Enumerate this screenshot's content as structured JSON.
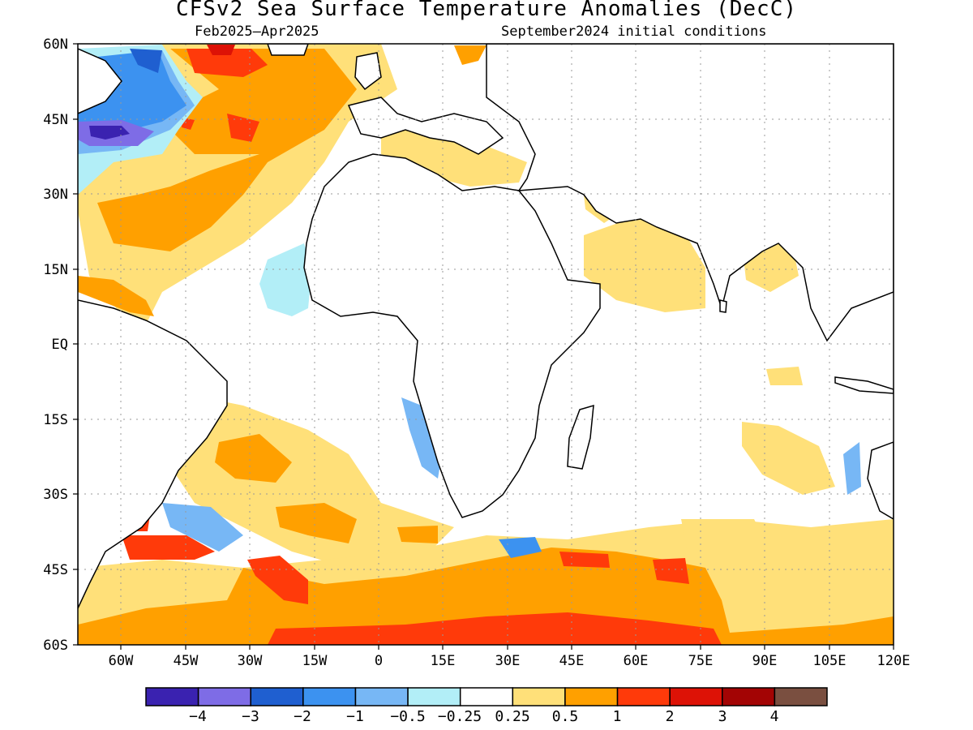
{
  "title": "CFSv2 Sea Surface Temperature Anomalies (DecC)",
  "subtitle_left": "Feb2025–Apr2025",
  "subtitle_right": "September2024 initial conditions",
  "lat_labels": [
    "60N",
    "45N",
    "30N",
    "15N",
    "EQ",
    "15S",
    "30S",
    "45S",
    "60S"
  ],
  "lon_labels": [
    "60W",
    "45W",
    "30W",
    "15W",
    "0",
    "15E",
    "30E",
    "45E",
    "60E",
    "75E",
    "90E",
    "105E",
    "120E"
  ],
  "colorbar": {
    "colors": [
      "#3a22b0",
      "#7e6ce6",
      "#1f5fd0",
      "#3c92f0",
      "#77b7f5",
      "#b2eef7",
      "#ffffff",
      "#ffe079",
      "#ffa000",
      "#ff3a0a",
      "#dd1206",
      "#a30404",
      "#7a4f40"
    ],
    "labels": [
      "−4",
      "−3",
      "−2",
      "−1",
      "−0.5",
      "−0.25",
      "0.25",
      "0.5",
      "1",
      "2",
      "3",
      "4"
    ]
  },
  "map": {
    "lat_range": [
      -60,
      60
    ],
    "lon_range": [
      -70,
      120
    ],
    "grid": "dotted",
    "region": "Atlantic and Indian Oceans"
  }
}
